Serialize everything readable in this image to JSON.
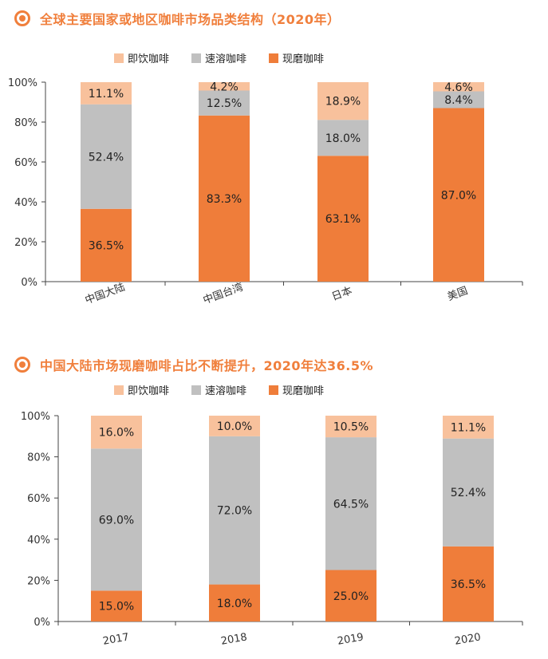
{
  "colors": {
    "accent": "#f07f3c",
    "fresh_ground": "#ef7d3a",
    "instant": "#c0c0c0",
    "rtd": "#f8c19c",
    "axis": "#444444"
  },
  "chart1": {
    "bullet_icon": "circle-bullet-icon",
    "title": "全球主要国家或地区咖啡市场品类结构（2020年）",
    "legend": [
      "即饮咖啡",
      "速溶咖啡",
      "现磨咖啡"
    ]
  },
  "chart2": {
    "bullet_icon": "circle-bullet-icon",
    "title": "中国大陆市场现磨咖啡占比不断提升，2020年达36.5%",
    "legend": [
      "即饮咖啡",
      "速溶咖啡",
      "现磨咖啡"
    ]
  },
  "chart_data": [
    {
      "type": "bar",
      "stacked": true,
      "title": "全球主要国家或地区咖啡市场品类结构（2020年）",
      "categories": [
        "中国大陆",
        "中国台湾",
        "日本",
        "美国"
      ],
      "series": [
        {
          "name": "现磨咖啡",
          "values": [
            36.5,
            83.3,
            63.1,
            87.0
          ],
          "labels": [
            "36.5%",
            "83.3%",
            "63.1%",
            "87.0%"
          ]
        },
        {
          "name": "速溶咖啡",
          "values": [
            52.4,
            12.5,
            18.0,
            8.4
          ],
          "labels": [
            "52.4%",
            "12.5%",
            "18.0%",
            "8.4%"
          ]
        },
        {
          "name": "即饮咖啡",
          "values": [
            11.1,
            4.2,
            18.9,
            4.6
          ],
          "labels": [
            "11.1%",
            "4.2%",
            "18.9%",
            "4.6%"
          ]
        }
      ],
      "yticks": [
        "0%",
        "20%",
        "40%",
        "60%",
        "80%",
        "100%"
      ],
      "ylim": [
        0,
        100
      ],
      "legend_position": "top",
      "grid": false
    },
    {
      "type": "bar",
      "stacked": true,
      "title": "中国大陆市场现磨咖啡占比不断提升，2020年达36.5%",
      "categories": [
        "2017",
        "2018",
        "2019",
        "2020"
      ],
      "series": [
        {
          "name": "现磨咖啡",
          "values": [
            15.0,
            18.0,
            25.0,
            36.5
          ],
          "labels": [
            "15.0%",
            "18.0%",
            "25.0%",
            "36.5%"
          ]
        },
        {
          "name": "速溶咖啡",
          "values": [
            69.0,
            72.0,
            64.5,
            52.4
          ],
          "labels": [
            "69.0%",
            "72.0%",
            "64.5%",
            "52.4%"
          ]
        },
        {
          "name": "即饮咖啡",
          "values": [
            16.0,
            10.0,
            10.5,
            11.1
          ],
          "labels": [
            "16.0%",
            "10.0%",
            "10.5%",
            "11.1%"
          ]
        }
      ],
      "yticks": [
        "0%",
        "20%",
        "40%",
        "60%",
        "80%",
        "100%"
      ],
      "ylim": [
        0,
        100
      ],
      "legend_position": "top",
      "grid": false
    }
  ]
}
